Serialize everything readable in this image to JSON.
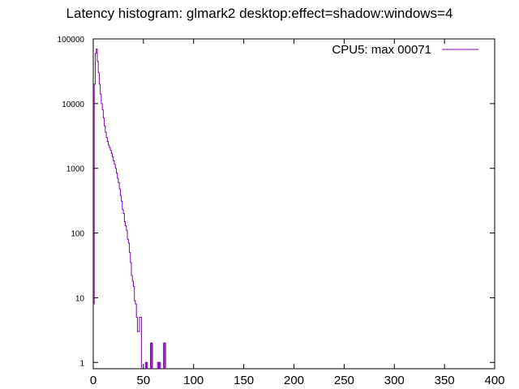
{
  "chart_data": {
    "type": "line",
    "title": "Latency histogram:  glmark2 desktop:effect=shadow:windows=4",
    "xlabel": "",
    "ylabel": "",
    "xlim": [
      0,
      400
    ],
    "ylim": [
      0.8,
      100000
    ],
    "yscale": "log",
    "grid": false,
    "legend_position": "top-right",
    "x_ticks": [
      "0",
      "50",
      "100",
      "150",
      "200",
      "250",
      "300",
      "350",
      "400"
    ],
    "y_ticks": [
      "1",
      "10",
      "100",
      "1000",
      "10000",
      "100000"
    ],
    "series": [
      {
        "name": "CPU5: max 00071",
        "color": "#8000c0",
        "points": [
          [
            0,
            8
          ],
          [
            1,
            20000
          ],
          [
            2,
            60000
          ],
          [
            3,
            70000
          ],
          [
            4,
            45000
          ],
          [
            5,
            30000
          ],
          [
            6,
            20000
          ],
          [
            7,
            14000
          ],
          [
            8,
            10000
          ],
          [
            9,
            8000
          ],
          [
            10,
            6000
          ],
          [
            11,
            4500
          ],
          [
            12,
            3600
          ],
          [
            13,
            3000
          ],
          [
            14,
            2600
          ],
          [
            15,
            2300
          ],
          [
            16,
            2100
          ],
          [
            17,
            1900
          ],
          [
            18,
            1700
          ],
          [
            19,
            1500
          ],
          [
            20,
            1300
          ],
          [
            21,
            1150
          ],
          [
            22,
            1000
          ],
          [
            23,
            850
          ],
          [
            24,
            700
          ],
          [
            25,
            600
          ],
          [
            26,
            480
          ],
          [
            27,
            380
          ],
          [
            28,
            310
          ],
          [
            29,
            230
          ],
          [
            30,
            200
          ],
          [
            31,
            150
          ],
          [
            32,
            130
          ],
          [
            33,
            110
          ],
          [
            34,
            80
          ],
          [
            35,
            70
          ],
          [
            36,
            50
          ],
          [
            37,
            35
          ],
          [
            38,
            22
          ],
          [
            39,
            18
          ],
          [
            40,
            15
          ],
          [
            41,
            9
          ],
          [
            42,
            8
          ],
          [
            43,
            5
          ],
          [
            44,
            3
          ],
          [
            45,
            3
          ],
          [
            46,
            5
          ],
          [
            47,
            5
          ],
          [
            48,
            0
          ],
          [
            52,
            1
          ],
          [
            53,
            1
          ],
          [
            54,
            0
          ],
          [
            57,
            2
          ],
          [
            58,
            2
          ],
          [
            59,
            0
          ],
          [
            64,
            1
          ],
          [
            65,
            1
          ],
          [
            66,
            1
          ],
          [
            67,
            0
          ],
          [
            70,
            2
          ],
          [
            71,
            2
          ],
          [
            72,
            0
          ]
        ]
      }
    ]
  }
}
